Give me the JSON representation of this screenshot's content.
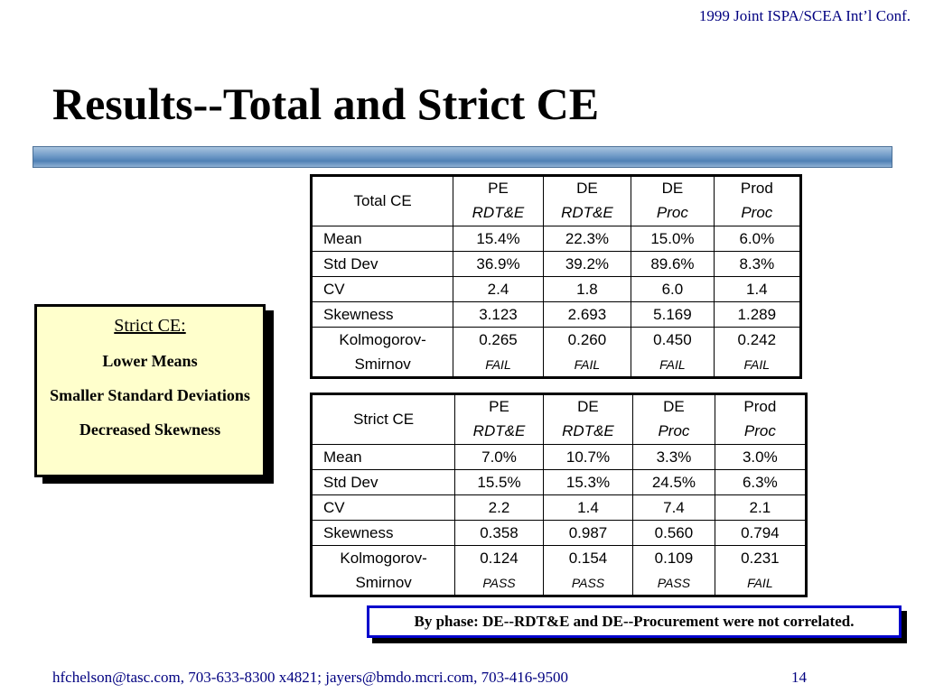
{
  "header": {
    "conference": "1999 Joint ISPA/SCEA Int’l Conf."
  },
  "title": "Results--Total and Strict CE",
  "callout": {
    "heading": "Strict CE:",
    "items": [
      "Lower Means",
      "Smaller Standard Deviations",
      "Decreased Skewness"
    ]
  },
  "total_table": {
    "label": "Total CE",
    "columns": [
      {
        "top": "PE",
        "bottom": "RDT&E"
      },
      {
        "top": "DE",
        "bottom": "RDT&E"
      },
      {
        "top": "DE",
        "bottom": "Proc"
      },
      {
        "top": "Prod",
        "bottom": "Proc"
      }
    ],
    "rows": [
      {
        "label": "Mean",
        "values": [
          "15.4%",
          "22.3%",
          "15.0%",
          "6.0%"
        ]
      },
      {
        "label": "Std Dev",
        "values": [
          "36.9%",
          "39.2%",
          "89.6%",
          "8.3%"
        ]
      },
      {
        "label": "CV",
        "values": [
          "2.4",
          "1.8",
          "6.0",
          "1.4"
        ]
      },
      {
        "label": "Skewness",
        "values": [
          "3.123",
          "2.693",
          "5.169",
          "1.289"
        ]
      }
    ],
    "ks": {
      "label_top": "Kolmogorov-",
      "label_bottom": "Smirnov",
      "values": [
        "0.265",
        "0.260",
        "0.450",
        "0.242"
      ],
      "results": [
        "FAIL",
        "FAIL",
        "FAIL",
        "FAIL"
      ]
    }
  },
  "strict_table": {
    "label": "Strict CE",
    "columns": [
      {
        "top": "PE",
        "bottom": "RDT&E"
      },
      {
        "top": "DE",
        "bottom": "RDT&E"
      },
      {
        "top": "DE",
        "bottom": "Proc"
      },
      {
        "top": "Prod",
        "bottom": "Proc"
      }
    ],
    "rows": [
      {
        "label": "Mean",
        "values": [
          "7.0%",
          "10.7%",
          "3.3%",
          "3.0%"
        ]
      },
      {
        "label": "Std Dev",
        "values": [
          "15.5%",
          "15.3%",
          "24.5%",
          "6.3%"
        ]
      },
      {
        "label": "CV",
        "values": [
          "2.2",
          "1.4",
          "7.4",
          "2.1"
        ]
      },
      {
        "label": "Skewness",
        "values": [
          "0.358",
          "0.987",
          "0.560",
          "0.794"
        ]
      }
    ],
    "ks": {
      "label_top": "Kolmogorov-",
      "label_bottom": "Smirnov",
      "values": [
        "0.124",
        "0.154",
        "0.109",
        "0.231"
      ],
      "results": [
        "PASS",
        "PASS",
        "PASS",
        "FAIL"
      ]
    }
  },
  "note": "By phase: DE--RDT&E and DE--Procurement were not correlated.",
  "footer": {
    "contact": "hfchelson@tasc.com, 703-633-8300 x4821; jayers@bmdo.mcri.com, 703-416-9500",
    "page": "14"
  }
}
